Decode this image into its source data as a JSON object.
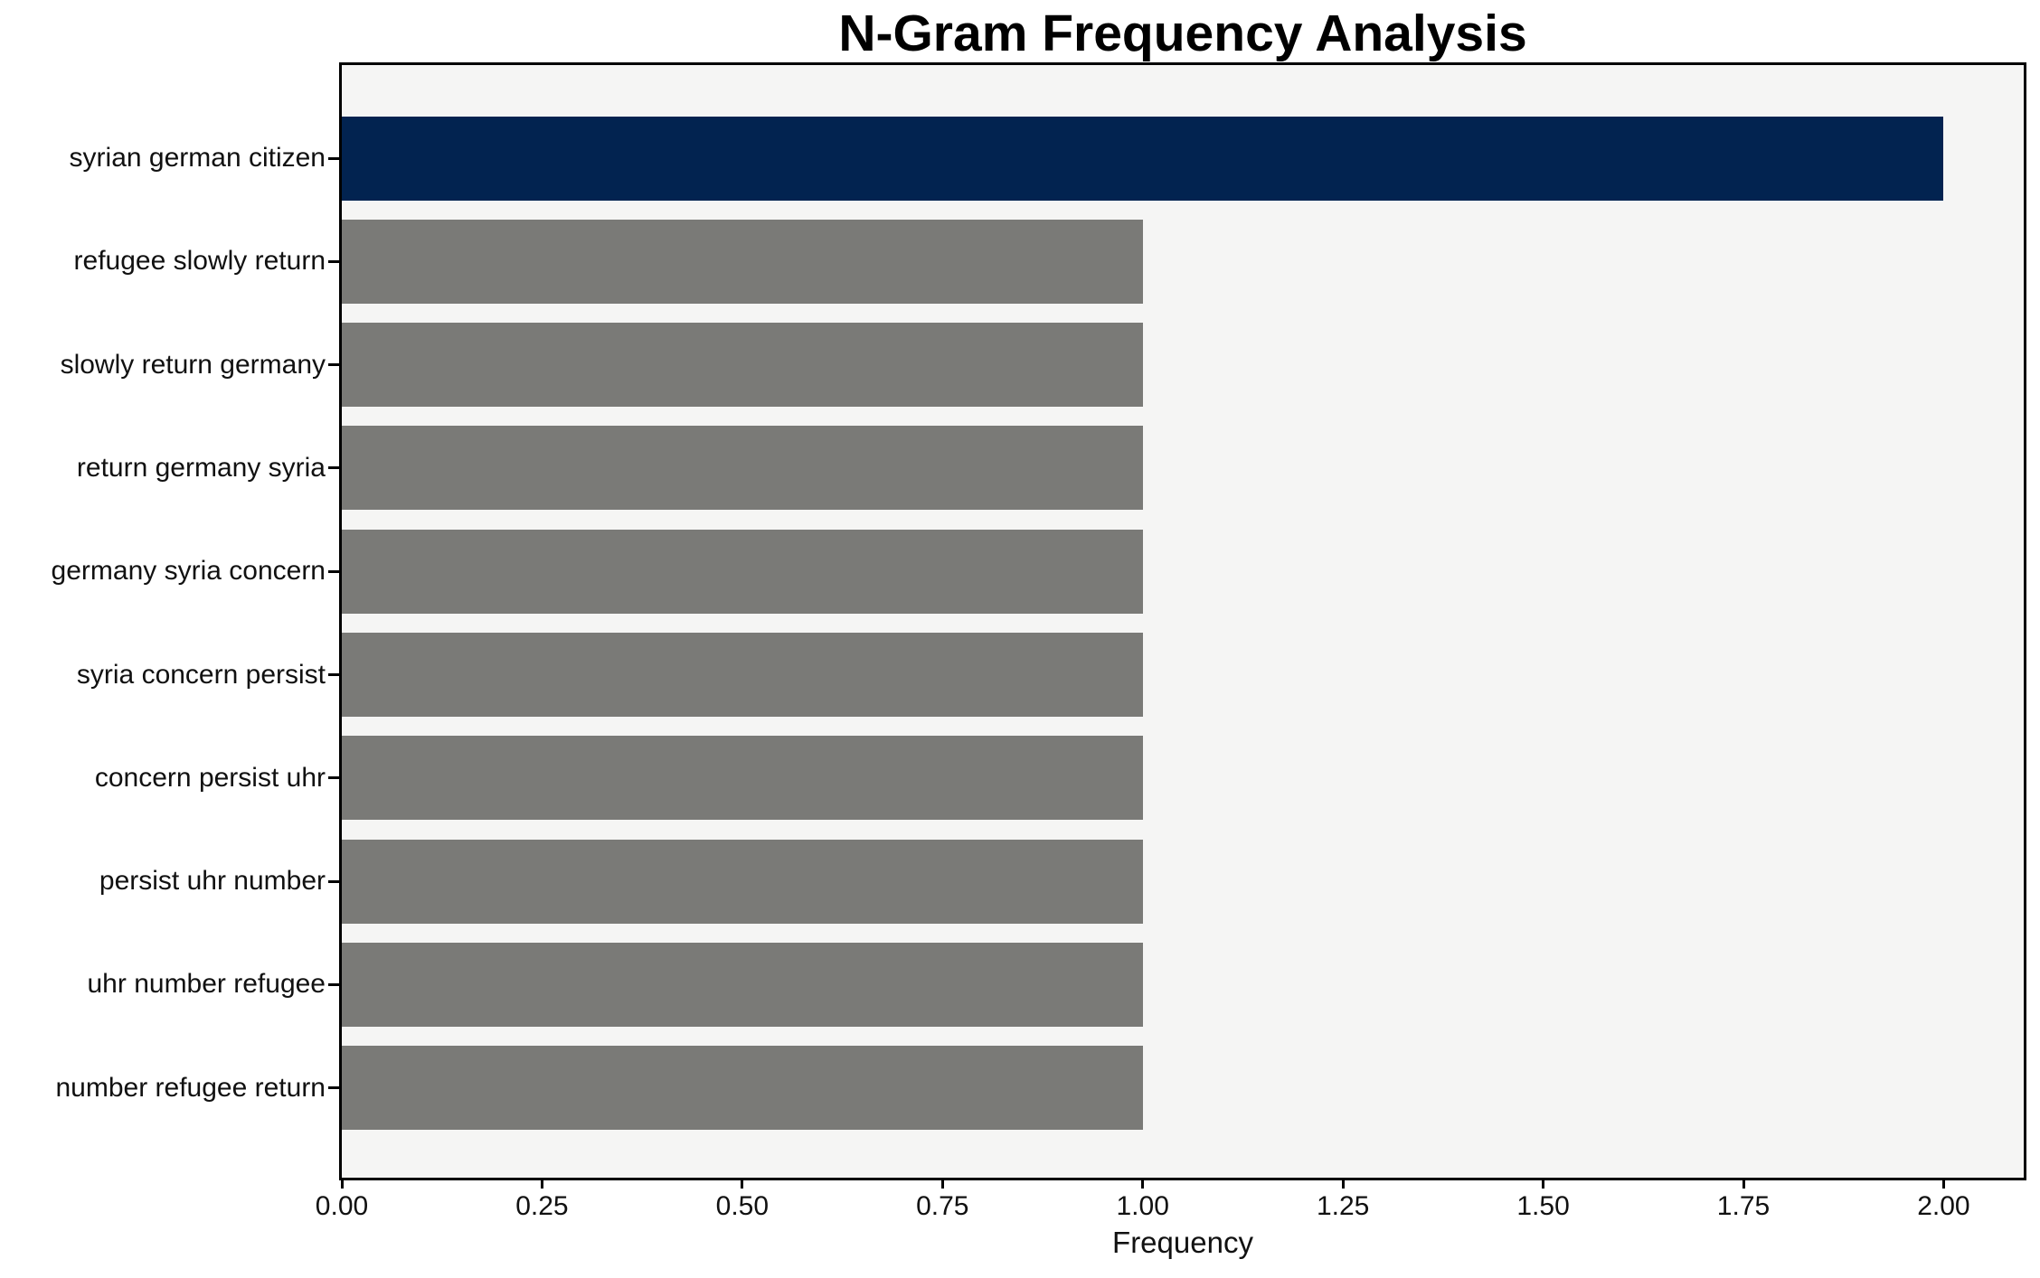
{
  "chart_data": {
    "type": "bar",
    "orientation": "horizontal",
    "title": "N-Gram Frequency Analysis",
    "xlabel": "Frequency",
    "ylabel": "",
    "categories": [
      "syrian german citizen",
      "refugee slowly return",
      "slowly return germany",
      "return germany syria",
      "germany syria concern",
      "syria concern persist",
      "concern persist uhr",
      "persist uhr number",
      "uhr number refugee",
      "number refugee return"
    ],
    "values": [
      2,
      1,
      1,
      1,
      1,
      1,
      1,
      1,
      1,
      1
    ],
    "highlight_index": 0,
    "xlim": [
      0,
      2.1
    ],
    "xticks": [
      0,
      0.25,
      0.5,
      0.75,
      1.0,
      1.25,
      1.5,
      1.75,
      2.0
    ],
    "xtick_labels": [
      "0.00",
      "0.25",
      "0.50",
      "0.75",
      "1.00",
      "1.25",
      "1.50",
      "1.75",
      "2.00"
    ],
    "grid": false,
    "legend": null,
    "colors": {
      "bar_highlight": "#022350",
      "bar_default": "#7a7a77",
      "plot_background": "#f5f5f4",
      "figure_background": "#ffffff",
      "spine": "#000000",
      "text": "#111111"
    }
  }
}
